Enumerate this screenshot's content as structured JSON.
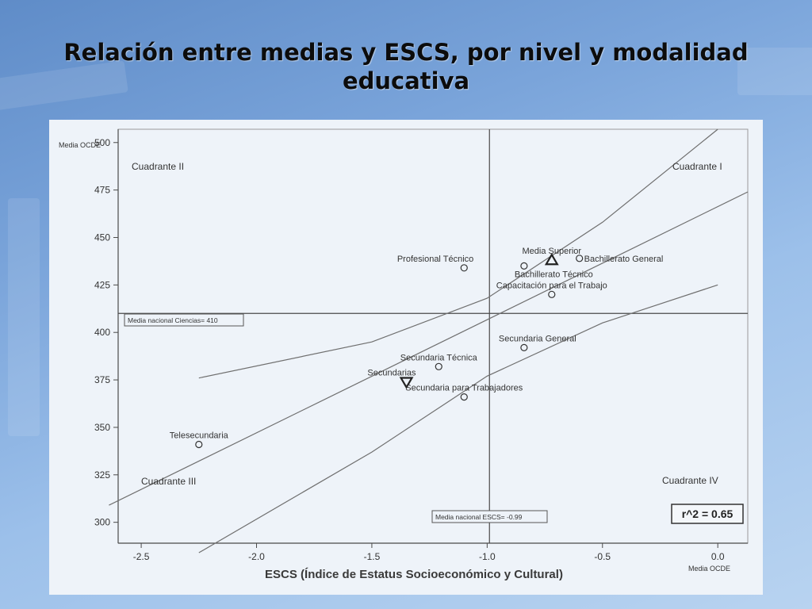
{
  "slide": {
    "title_line1": "Relación entre medias y ESCS, por nivel y modalidad",
    "title_line2": "educativa"
  },
  "chart_data": {
    "type": "scatter",
    "xlabel": "ESCS (Índice de Estatus Socioeconómico y Cultural)",
    "x_corner_label": "Media OCDE",
    "ylabel": "Media OCDE",
    "xlim": [
      -2.6,
      0.13
    ],
    "ylim": [
      289,
      507
    ],
    "x_ticks": [
      -2.5,
      -2.0,
      -1.5,
      -1.0,
      -0.5,
      0.0
    ],
    "x_tick_labels": [
      "-2.5",
      "-2.0",
      "-1.5",
      "-1.0",
      "-0.5",
      "0.0"
    ],
    "y_ticks": [
      300,
      325,
      350,
      375,
      400,
      425,
      450,
      475,
      500
    ],
    "y_tick_labels": [
      "300",
      "325",
      "350",
      "375",
      "400",
      "425",
      "450",
      "475",
      "500"
    ],
    "reference_lines": {
      "vertical": {
        "x": -0.99,
        "label": "Media nacional ESCS= -0.99"
      },
      "horizontal": {
        "y": 410,
        "label": "Media nacional Ciencias= 410"
      }
    },
    "quadrants": {
      "q1": "Cuadrante I",
      "q2": "Cuadrante II",
      "q3": "Cuadrante III",
      "q4": "Cuadrante IV"
    },
    "r_squared_label": "r^2 = 0.65",
    "fit_lines": [
      {
        "role": "regression",
        "points": [
          [
            -2.64,
            309
          ],
          [
            0.13,
            474
          ]
        ]
      },
      {
        "role": "upper-band",
        "points": [
          [
            -2.25,
            376
          ],
          [
            -1.5,
            395
          ],
          [
            -1.0,
            418
          ],
          [
            -0.5,
            458
          ],
          [
            0.0,
            507
          ]
        ]
      },
      {
        "role": "lower-band",
        "points": [
          [
            -2.25,
            284
          ],
          [
            -1.5,
            337
          ],
          [
            -1.0,
            377
          ],
          [
            -0.5,
            405
          ],
          [
            0.0,
            425
          ]
        ]
      }
    ],
    "points": [
      {
        "name": "Media Superior",
        "x": -0.72,
        "y": 438,
        "marker": "triangle-up",
        "label_pos": "above"
      },
      {
        "name": "Bachillerato General",
        "x": -0.6,
        "y": 439,
        "marker": "circle",
        "label_pos": "right"
      },
      {
        "name": "Profesional Técnico",
        "x": -1.1,
        "y": 434,
        "marker": "circle",
        "label_pos": "above-left"
      },
      {
        "name": "Bachillerato Técnico",
        "x": -0.84,
        "y": 435,
        "marker": "circle",
        "label_pos": "below-right"
      },
      {
        "name": "Capacitación para el Trabajo",
        "x": -0.72,
        "y": 420,
        "marker": "circle",
        "label_pos": "above"
      },
      {
        "name": "Secundaria General",
        "x": -0.84,
        "y": 392,
        "marker": "circle",
        "label_pos": "above-right"
      },
      {
        "name": "Secundaria Técnica",
        "x": -1.21,
        "y": 382,
        "marker": "circle",
        "label_pos": "above"
      },
      {
        "name": "Secundarias",
        "x": -1.35,
        "y": 374,
        "marker": "triangle-down",
        "label_pos": "above-left"
      },
      {
        "name": "Secundaria para Trabajadores",
        "x": -1.1,
        "y": 366,
        "marker": "circle",
        "label_pos": "above"
      },
      {
        "name": "Telesecundaria",
        "x": -2.25,
        "y": 341,
        "marker": "circle",
        "label_pos": "above"
      }
    ]
  }
}
